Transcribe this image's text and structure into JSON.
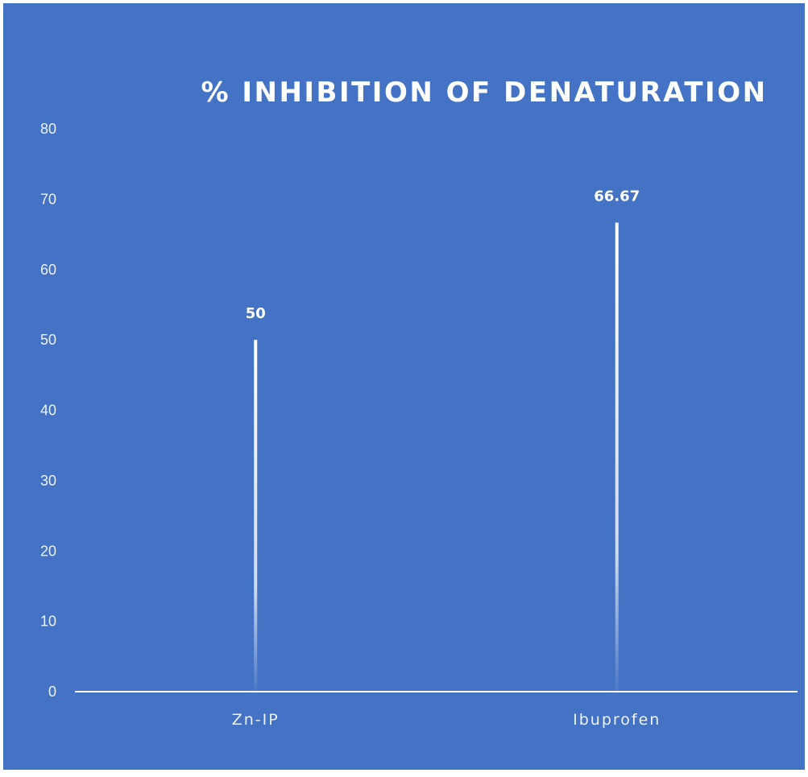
{
  "chart_data": {
    "type": "bar",
    "title": "% INHIBITION OF DENATURATION",
    "categories": [
      "Zn-IP",
      "Ibuprofen"
    ],
    "values": [
      50,
      66.67
    ],
    "data_labels": [
      "50",
      "66.67"
    ],
    "ylim": [
      0,
      80
    ],
    "yticks": [
      0,
      10,
      20,
      30,
      40,
      50,
      60,
      70,
      80
    ],
    "ytick_labels": [
      "0",
      "10",
      "20",
      "30",
      "40",
      "50",
      "60",
      "70",
      "80"
    ],
    "grid": false,
    "legend": "none",
    "colors": {
      "background": "#4472c4",
      "bar": "#ffffff",
      "axis": "#ffffff",
      "text": "#ffffff",
      "border": "#ffffff"
    }
  }
}
